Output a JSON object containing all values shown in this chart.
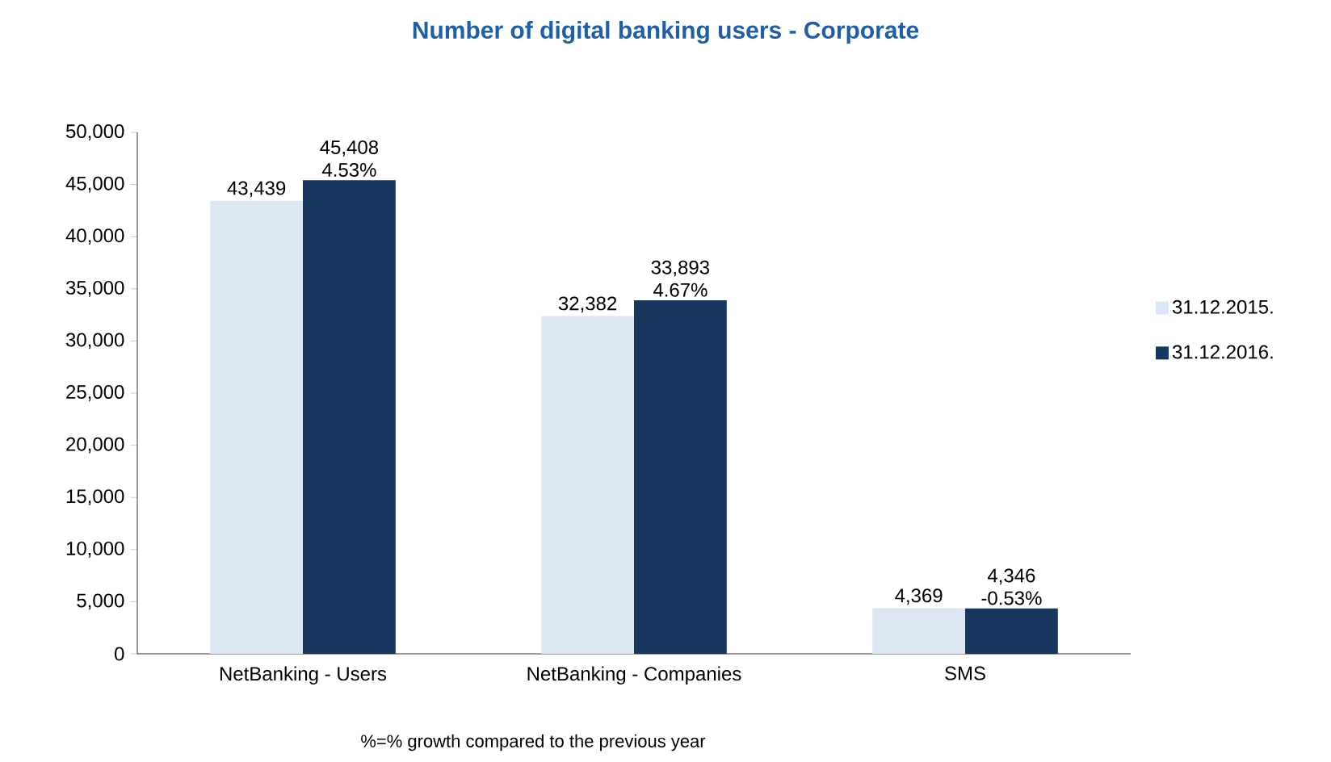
{
  "chart_data": {
    "type": "bar",
    "title": "Number of digital banking users - Corporate",
    "categories": [
      "NetBanking - Users",
      "NetBanking - Companies",
      "SMS"
    ],
    "series": [
      {
        "name": "31.12.2015.",
        "color": "#dce6f2",
        "values": [
          43439,
          32382,
          4369
        ],
        "value_labels": [
          "43,439",
          "32,382",
          "4,369"
        ]
      },
      {
        "name": "31.12.2016.",
        "color": "#17375e",
        "values": [
          45408,
          33893,
          4346
        ],
        "value_labels": [
          "45,408 4.53%",
          "33,893 4.67%",
          "4,346 -0.53%"
        ]
      }
    ],
    "ylim": [
      0,
      50000
    ],
    "yticks": [
      {
        "value": 0,
        "label": "0"
      },
      {
        "value": 5000,
        "label": "5,000"
      },
      {
        "value": 10000,
        "label": "10,000"
      },
      {
        "value": 15000,
        "label": "15,000"
      },
      {
        "value": 20000,
        "label": "20,000"
      },
      {
        "value": 25000,
        "label": "25,000"
      },
      {
        "value": 30000,
        "label": "30,000"
      },
      {
        "value": 35000,
        "label": "35,000"
      },
      {
        "value": 40000,
        "label": "40,000"
      },
      {
        "value": 45000,
        "label": "45,000"
      },
      {
        "value": 50000,
        "label": "50,000"
      }
    ],
    "legend": "right",
    "grid": false,
    "annotations": [
      "%=% growth compared to the previous year"
    ]
  }
}
